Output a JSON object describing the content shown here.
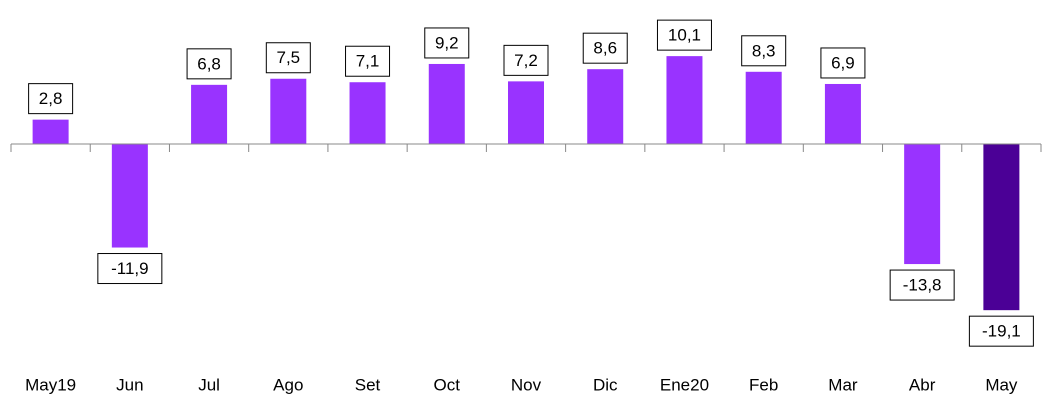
{
  "chart_data": {
    "type": "bar",
    "categories": [
      "May19",
      "Jun",
      "Jul",
      "Ago",
      "Set",
      "Oct",
      "Nov",
      "Dic",
      "Ene20",
      "Feb",
      "Mar",
      "Abr",
      "May"
    ],
    "values": [
      2.8,
      -11.9,
      6.8,
      7.5,
      7.1,
      9.2,
      7.2,
      8.6,
      10.1,
      8.3,
      6.9,
      -13.8,
      -19.1
    ],
    "value_labels": [
      "2,8",
      "-11,9",
      "6,8",
      "7,5",
      "7,1",
      "9,2",
      "7,2",
      "8,6",
      "10,1",
      "8,3",
      "6,9",
      "-13,8",
      "-19,1"
    ],
    "colors": [
      "#9933ff",
      "#9933ff",
      "#9933ff",
      "#9933ff",
      "#9933ff",
      "#9933ff",
      "#9933ff",
      "#9933ff",
      "#9933ff",
      "#9933ff",
      "#9933ff",
      "#9933ff",
      "#4b0096"
    ],
    "ylim": [
      -25,
      15
    ]
  }
}
